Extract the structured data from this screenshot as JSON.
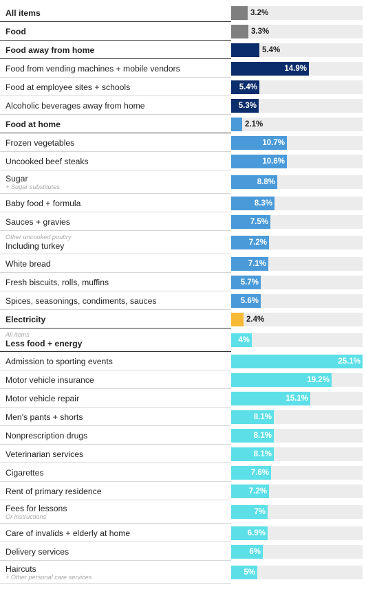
{
  "chart_data": {
    "type": "bar",
    "orientation": "horizontal",
    "xlim": [
      0,
      25.1
    ],
    "colors": {
      "gray": "#7f7f7f",
      "navy": "#0c2d6b",
      "blue": "#4a9ad9",
      "amber": "#f8b935",
      "cyan": "#5ddfe8",
      "track": "#ececec"
    },
    "rows": [
      {
        "label": "All items",
        "note": "",
        "note_pos": "",
        "value": 3.2,
        "value_label": "3.2%",
        "color": "gray",
        "header": true
      },
      {
        "label": "Food",
        "note": "",
        "note_pos": "",
        "value": 3.3,
        "value_label": "3.3%",
        "color": "gray",
        "header": true
      },
      {
        "label": "Food away from home",
        "note": "",
        "note_pos": "",
        "value": 5.4,
        "value_label": "5.4%",
        "color": "navy",
        "header": true
      },
      {
        "label": "Food from vending machines + mobile vendors",
        "note": "",
        "note_pos": "",
        "value": 14.9,
        "value_label": "14.9%",
        "color": "navy",
        "header": false
      },
      {
        "label": "Food at employee sites + schools",
        "note": "",
        "note_pos": "",
        "value": 5.4,
        "value_label": "5.4%",
        "color": "navy",
        "header": false
      },
      {
        "label": "Alcoholic beverages away from home",
        "note": "",
        "note_pos": "",
        "value": 5.3,
        "value_label": "5.3%",
        "color": "navy",
        "header": false
      },
      {
        "label": "Food at home",
        "note": "",
        "note_pos": "",
        "value": 2.1,
        "value_label": "2.1%",
        "color": "blue",
        "header": true
      },
      {
        "label": "Frozen vegetables",
        "note": "",
        "note_pos": "",
        "value": 10.7,
        "value_label": "10.7%",
        "color": "blue",
        "header": false
      },
      {
        "label": "Uncooked beef steaks",
        "note": "",
        "note_pos": "",
        "value": 10.6,
        "value_label": "10.6%",
        "color": "blue",
        "header": false
      },
      {
        "label": "Sugar",
        "note": "+ Sugar substitutes",
        "note_pos": "below",
        "value": 8.8,
        "value_label": "8.8%",
        "color": "blue",
        "header": false
      },
      {
        "label": "Baby food + formula",
        "note": "",
        "note_pos": "",
        "value": 8.3,
        "value_label": "8.3%",
        "color": "blue",
        "header": false
      },
      {
        "label": "Sauces + gravies",
        "note": "",
        "note_pos": "",
        "value": 7.5,
        "value_label": "7.5%",
        "color": "blue",
        "header": false
      },
      {
        "label": "Including turkey",
        "note": "Other uncooked poultry",
        "note_pos": "above",
        "value": 7.2,
        "value_label": "7.2%",
        "color": "blue",
        "header": false
      },
      {
        "label": "White bread",
        "note": "",
        "note_pos": "",
        "value": 7.1,
        "value_label": "7.1%",
        "color": "blue",
        "header": false
      },
      {
        "label": "Fresh biscuits, rolls, muffins",
        "note": "",
        "note_pos": "",
        "value": 5.7,
        "value_label": "5.7%",
        "color": "blue",
        "header": false
      },
      {
        "label": "Spices, seasonings, condiments, sauces",
        "note": "",
        "note_pos": "",
        "value": 5.6,
        "value_label": "5.6%",
        "color": "blue",
        "header": false
      },
      {
        "label": "Electricity",
        "note": "",
        "note_pos": "",
        "value": 2.4,
        "value_label": "2.4%",
        "color": "amber",
        "header": true
      },
      {
        "label": "Less food + energy",
        "note": "All items",
        "note_pos": "above",
        "value": 4,
        "value_label": "4%",
        "color": "cyan",
        "header": true
      },
      {
        "label": "Admission to sporting events",
        "note": "",
        "note_pos": "",
        "value": 25.1,
        "value_label": "25.1%",
        "color": "cyan",
        "header": false
      },
      {
        "label": "Motor vehicle insurance",
        "note": "",
        "note_pos": "",
        "value": 19.2,
        "value_label": "19.2%",
        "color": "cyan",
        "header": false
      },
      {
        "label": "Motor vehicle repair",
        "note": "",
        "note_pos": "",
        "value": 15.1,
        "value_label": "15.1%",
        "color": "cyan",
        "header": false
      },
      {
        "label": "Men's pants + shorts",
        "note": "",
        "note_pos": "",
        "value": 8.1,
        "value_label": "8.1%",
        "color": "cyan",
        "header": false
      },
      {
        "label": "Nonprescription drugs",
        "note": "",
        "note_pos": "",
        "value": 8.1,
        "value_label": "8.1%",
        "color": "cyan",
        "header": false
      },
      {
        "label": "Veterinarian services",
        "note": "",
        "note_pos": "",
        "value": 8.1,
        "value_label": "8.1%",
        "color": "cyan",
        "header": false
      },
      {
        "label": "Cigarettes",
        "note": "",
        "note_pos": "",
        "value": 7.6,
        "value_label": "7.6%",
        "color": "cyan",
        "header": false
      },
      {
        "label": "Rent of primary residence",
        "note": "",
        "note_pos": "",
        "value": 7.2,
        "value_label": "7.2%",
        "color": "cyan",
        "header": false
      },
      {
        "label": "Fees for lessons",
        "note": "Or instructions",
        "note_pos": "below",
        "value": 7,
        "value_label": "7%",
        "color": "cyan",
        "header": false
      },
      {
        "label": "Care of invalids + elderly at home",
        "note": "",
        "note_pos": "",
        "value": 6.9,
        "value_label": "6.9%",
        "color": "cyan",
        "header": false
      },
      {
        "label": "Delivery services",
        "note": "",
        "note_pos": "",
        "value": 6,
        "value_label": "6%",
        "color": "cyan",
        "header": false
      },
      {
        "label": "Haircuts",
        "note": "+ Other personal care services",
        "note_pos": "below",
        "value": 5,
        "value_label": "5%",
        "color": "cyan",
        "header": false
      }
    ]
  }
}
